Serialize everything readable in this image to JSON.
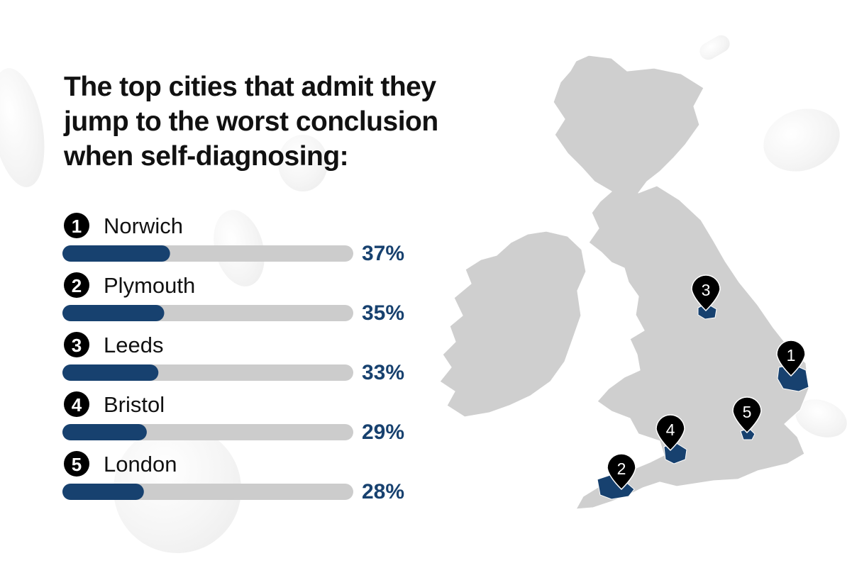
{
  "title": "The top cities that admit they jump to the worst conclusion when self-diagnosing:",
  "colors": {
    "accent": "#17416f",
    "track": "#cccccc",
    "marker": "#000000",
    "land": "#cfcfcf"
  },
  "chart_data": {
    "type": "bar",
    "orientation": "horizontal",
    "title": "The top cities that admit they jump to the worst conclusion when self-diagnosing:",
    "categories": [
      "Norwich",
      "Plymouth",
      "Leeds",
      "Bristol",
      "London"
    ],
    "ranks": [
      "1",
      "2",
      "3",
      "4",
      "5"
    ],
    "values": [
      37,
      35,
      33,
      29,
      28
    ],
    "value_labels": [
      "37%",
      "35%",
      "33%",
      "29%",
      "28%"
    ],
    "xlim": [
      0,
      100
    ],
    "grid": false,
    "legend": "none"
  },
  "map": {
    "markers": [
      {
        "rank": "1",
        "city": "Norwich"
      },
      {
        "rank": "2",
        "city": "Plymouth"
      },
      {
        "rank": "3",
        "city": "Leeds"
      },
      {
        "rank": "4",
        "city": "Bristol"
      },
      {
        "rank": "5",
        "city": "London"
      }
    ]
  }
}
